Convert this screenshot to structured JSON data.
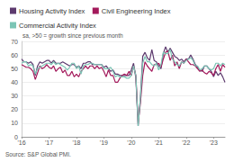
{
  "chart_data": {
    "type": "line",
    "subtitle": "sa, >50 = growth since previous month",
    "source": "Source: S&P Global PMI.",
    "categories": [
      "'16",
      null,
      null,
      null,
      null,
      null,
      null,
      null,
      null,
      null,
      null,
      null,
      "'17",
      null,
      null,
      null,
      null,
      null,
      null,
      null,
      null,
      null,
      null,
      null,
      "'18",
      null,
      null,
      null,
      null,
      null,
      null,
      null,
      null,
      null,
      null,
      null,
      "'19",
      null,
      null,
      null,
      null,
      null,
      null,
      null,
      null,
      null,
      null,
      null,
      "'20",
      null,
      null,
      null,
      null,
      null,
      null,
      null,
      null,
      null,
      null,
      null,
      "'21",
      null,
      null,
      null,
      null,
      null,
      null,
      null,
      null,
      null,
      null,
      null,
      "'22",
      null,
      null,
      null,
      null,
      null,
      null,
      null,
      null,
      null,
      null,
      null,
      "'23",
      null,
      null,
      null,
      null,
      null
    ],
    "series": [
      {
        "name": "Housing Activity Index",
        "color": "#5d3a6e",
        "values": [
          57,
          55,
          55,
          54,
          55,
          53,
          45,
          52,
          55,
          54,
          55,
          56,
          56,
          54,
          56,
          54,
          54,
          54,
          55,
          54,
          53,
          52,
          53,
          53,
          51,
          52,
          50,
          54,
          54,
          55,
          55,
          53,
          53,
          53,
          53,
          53,
          51,
          52,
          50,
          48,
          49,
          46,
          46,
          45,
          45,
          45,
          45,
          45,
          49,
          54,
          43,
          8,
          29,
          59,
          62,
          58,
          56,
          64,
          56,
          55,
          52,
          50,
          61,
          66,
          62,
          65,
          62,
          59,
          58,
          56,
          57,
          55,
          57,
          57,
          60,
          57,
          53,
          51,
          49,
          48,
          52,
          52,
          50,
          48,
          44,
          48,
          45,
          47,
          44,
          40
        ]
      },
      {
        "name": "Civil Engineering Index",
        "color": "#a3195b",
        "values": [
          53,
          52,
          51,
          51,
          50,
          48,
          42,
          47,
          52,
          50,
          51,
          53,
          51,
          50,
          52,
          48,
          50,
          51,
          47,
          49,
          45,
          45,
          48,
          44,
          46,
          44,
          48,
          50,
          52,
          50,
          52,
          52,
          50,
          52,
          50,
          51,
          48,
          44,
          49,
          45,
          45,
          40,
          40,
          43,
          45,
          46,
          45,
          48,
          45,
          52,
          45,
          10,
          25,
          45,
          55,
          52,
          50,
          48,
          53,
          53,
          54,
          51,
          57,
          62,
          63,
          56,
          60,
          52,
          55,
          50,
          55,
          54,
          57,
          55,
          53,
          53,
          52,
          50,
          48,
          49,
          47,
          46,
          48,
          47,
          45,
          50,
          53,
          48,
          53,
          51
        ]
      },
      {
        "name": "Commercial Activity Index",
        "color": "#7cc5b5",
        "values": [
          54,
          55,
          55,
          52,
          53,
          52,
          46,
          50,
          51,
          52,
          53,
          54,
          54,
          53,
          55,
          53,
          54,
          53,
          52,
          51,
          49,
          51,
          54,
          54,
          50,
          52,
          46,
          52,
          53,
          53,
          54,
          54,
          53,
          53,
          53,
          53,
          50,
          50,
          50,
          51,
          48,
          44,
          45,
          44,
          44,
          44,
          43,
          43,
          45,
          52,
          45,
          8,
          29,
          54,
          59,
          55,
          55,
          53,
          52,
          54,
          49,
          53,
          62,
          61,
          61,
          64,
          57,
          55,
          53,
          52,
          55,
          54,
          56,
          57,
          58,
          56,
          52,
          52,
          49,
          50,
          52,
          52,
          50,
          49,
          50,
          54,
          54,
          52,
          54,
          53
        ]
      }
    ],
    "ylim": [
      0,
      70
    ],
    "yticks": [
      0,
      10,
      20,
      30,
      40,
      50,
      60,
      70
    ],
    "grid": true,
    "legend": "top-left"
  }
}
